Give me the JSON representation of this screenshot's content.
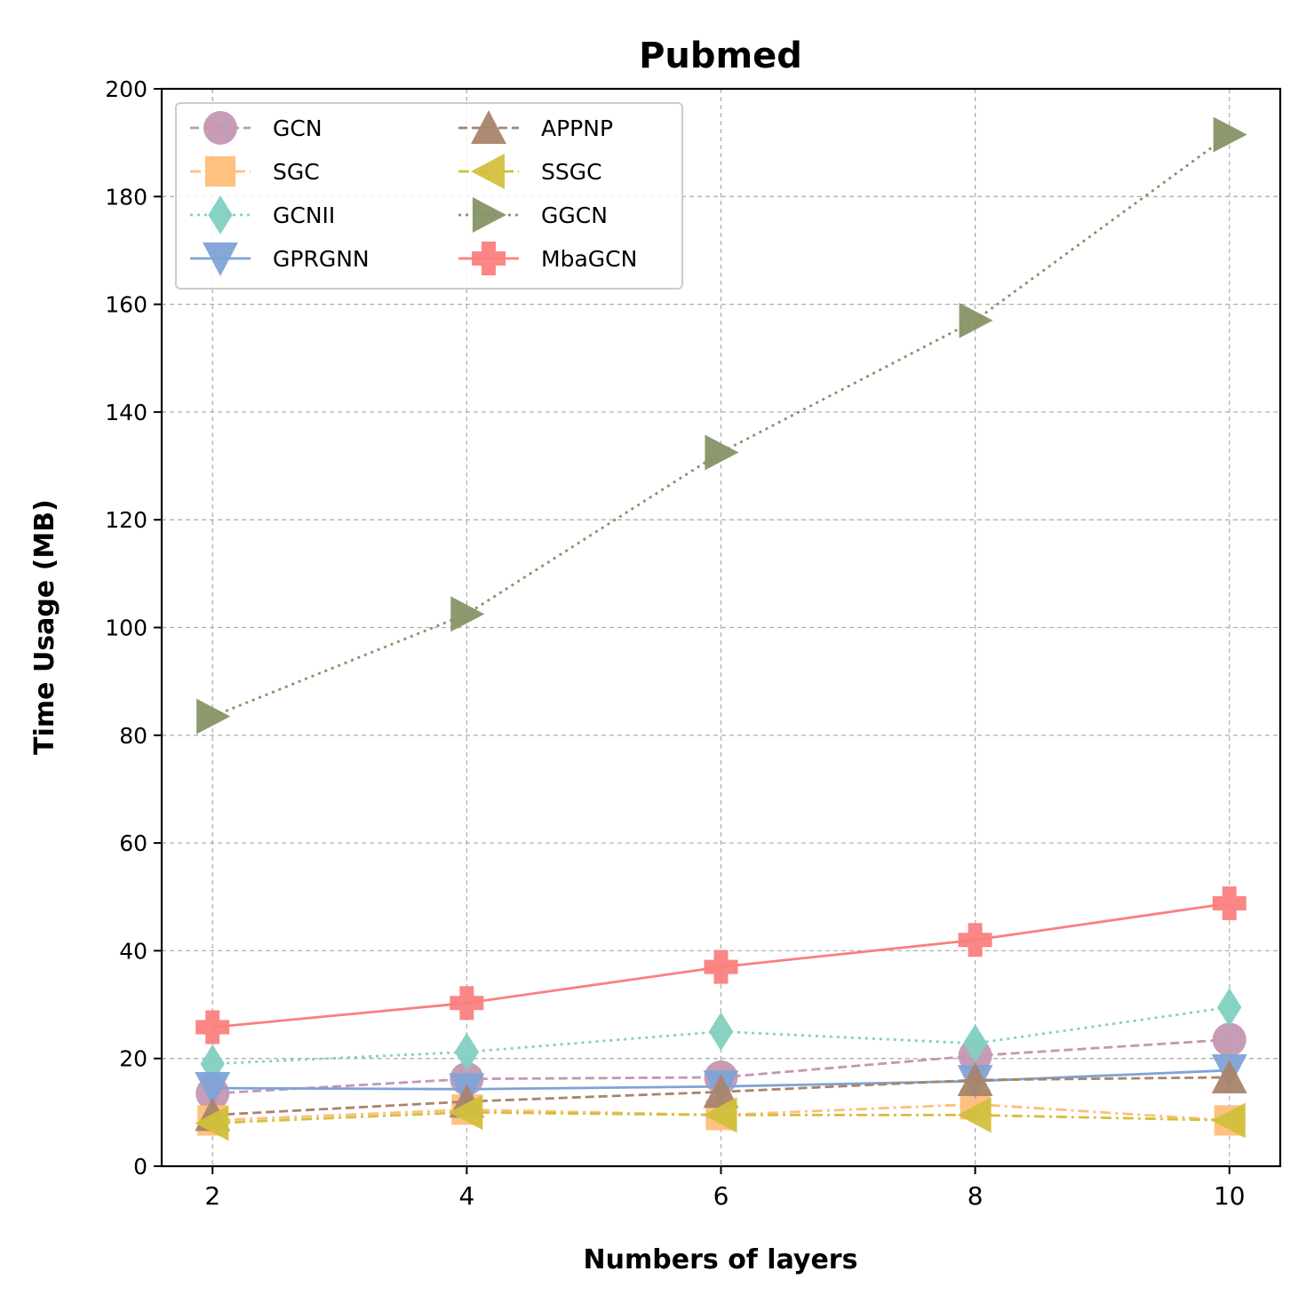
{
  "chart_data": {
    "type": "line",
    "title": "Pubmed",
    "xlabel": "Numbers of layers",
    "ylabel": "Time Usage (MB)",
    "x": [
      2,
      4,
      6,
      8,
      10
    ],
    "xlim": [
      1.6,
      10.4
    ],
    "ylim": [
      0,
      200
    ],
    "xticks": [
      2,
      4,
      6,
      8,
      10
    ],
    "yticks": [
      0,
      20,
      40,
      60,
      80,
      100,
      120,
      140,
      160,
      180,
      200
    ],
    "grid": true,
    "legend_position": "upper-left",
    "legend_columns": 2,
    "series": [
      {
        "name": "GCN",
        "values": [
          13.5,
          16.2,
          16.5,
          20.5,
          23.5
        ],
        "color": "#c497b2",
        "marker": "circle",
        "line": "dashed"
      },
      {
        "name": "SGC",
        "values": [
          8.5,
          10.5,
          9.5,
          11.5,
          8.5
        ],
        "color": "#ffbe7a",
        "marker": "square",
        "line": "dashdot"
      },
      {
        "name": "GCNII",
        "values": [
          19.0,
          21.2,
          25.0,
          22.8,
          29.5
        ],
        "color": "#82d0c1",
        "marker": "diamond",
        "line": "dotted"
      },
      {
        "name": "GPRGNN",
        "values": [
          14.5,
          14.3,
          14.8,
          15.8,
          17.8
        ],
        "color": "#7fa3d6",
        "marker": "triangle-down",
        "line": "solid"
      },
      {
        "name": "APPNP",
        "values": [
          9.5,
          12.0,
          13.8,
          16.0,
          16.5
        ],
        "color": "#a9846c",
        "marker": "triangle-up",
        "line": "dashed"
      },
      {
        "name": "SSGC",
        "values": [
          8.0,
          10.0,
          9.5,
          9.5,
          8.5
        ],
        "color": "#d2c03c",
        "marker": "triangle-left",
        "line": "dashdot"
      },
      {
        "name": "GGCN",
        "values": [
          83.5,
          102.5,
          132.5,
          157.0,
          191.5
        ],
        "color": "#869466",
        "marker": "triangle-right",
        "line": "dotted"
      },
      {
        "name": "MbaGCN",
        "values": [
          25.8,
          30.3,
          37.0,
          42.0,
          48.8
        ],
        "color": "#fa7f7f",
        "marker": "plus-filled",
        "line": "solid"
      }
    ]
  }
}
